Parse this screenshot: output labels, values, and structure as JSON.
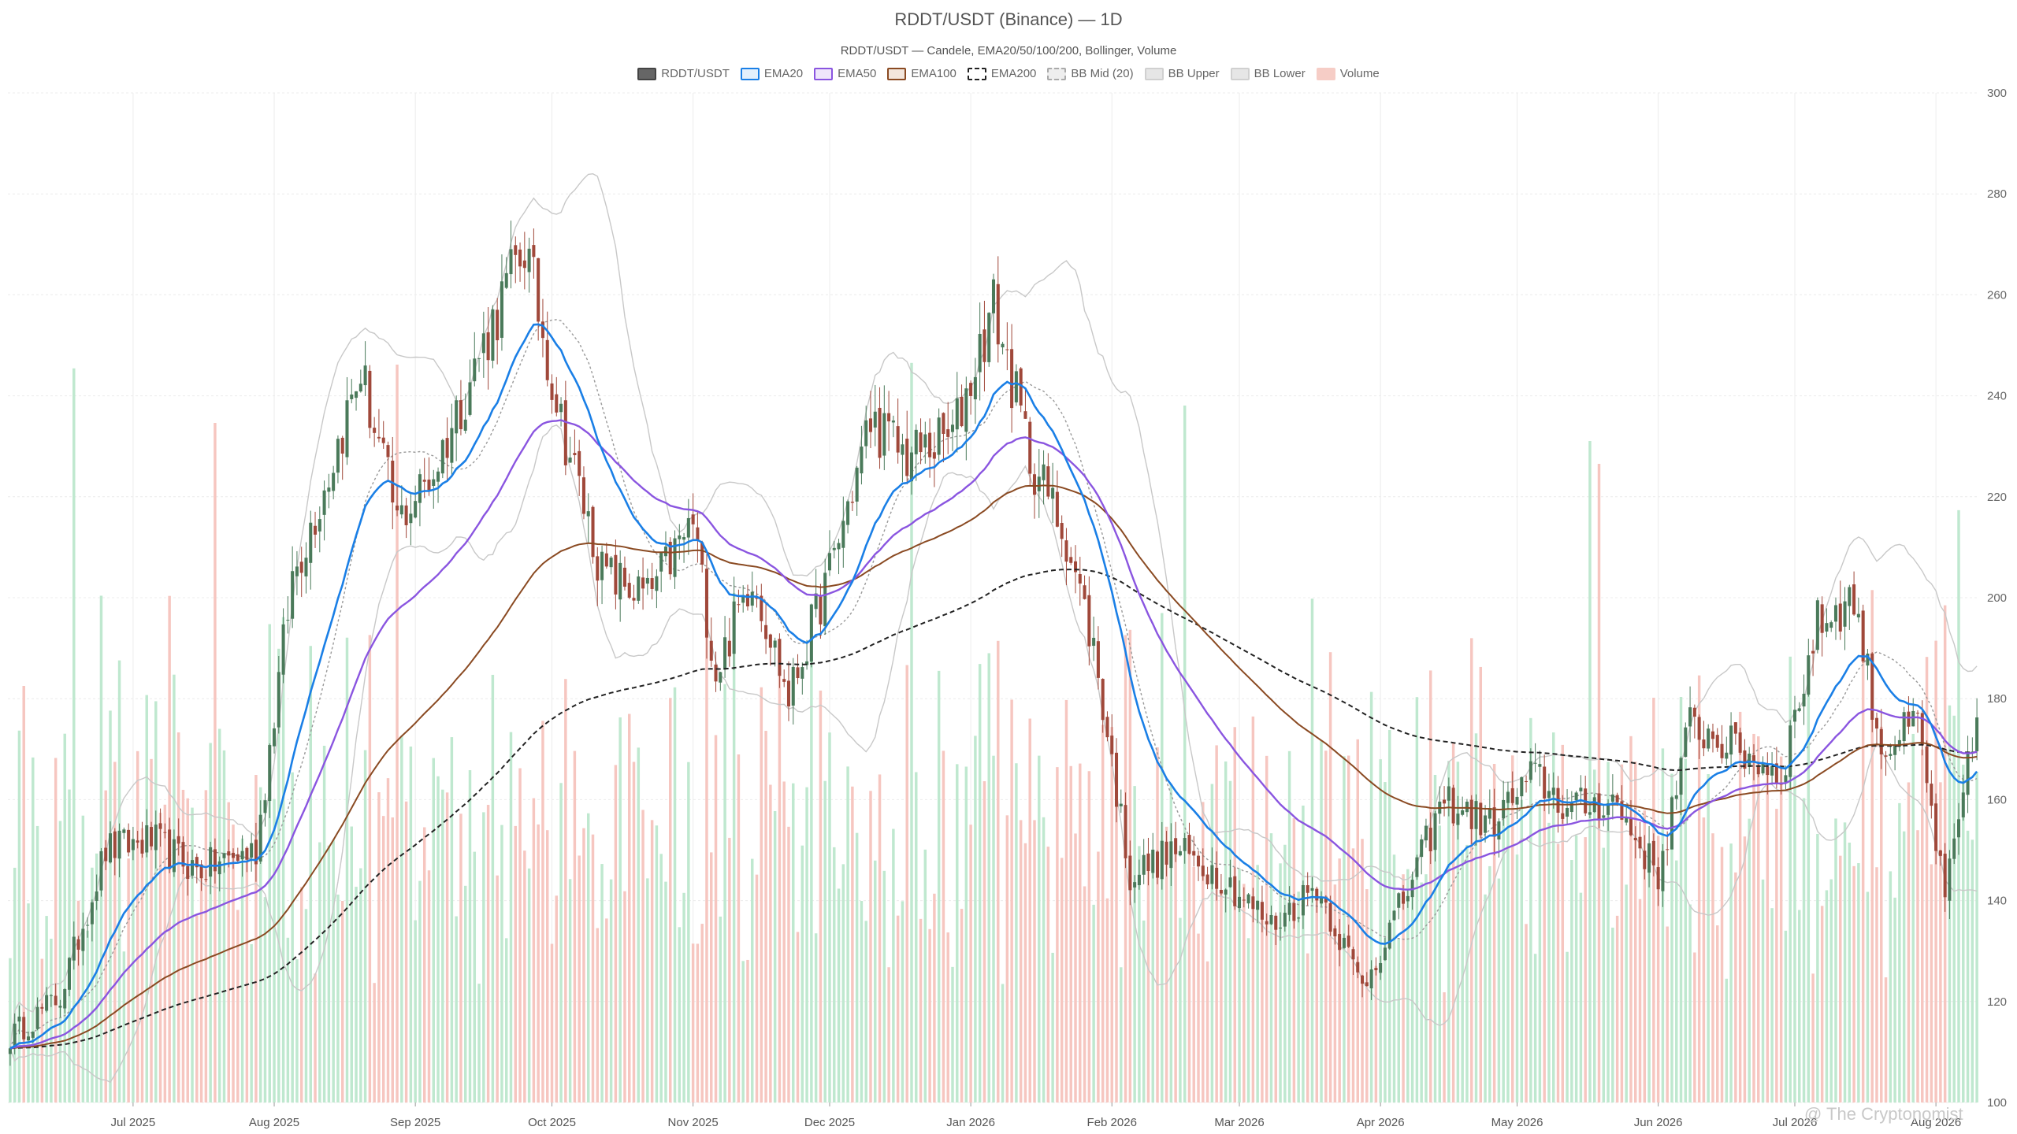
{
  "chart_data": {
    "type": "candlestick",
    "title": "RDDT/USDT (Binance) — 1D",
    "subtitle": "RDDT/USDT — Candele, EMA20/50/100/200, Bollinger, Volume",
    "ylim": [
      100,
      300
    ],
    "y_ticks": [
      "100",
      "120",
      "140",
      "160",
      "180",
      "200",
      "220",
      "240",
      "260",
      "280",
      "300"
    ],
    "grid": true,
    "legend_position": "top-center",
    "x_start": "2025-06-04",
    "x_end": "2026-08-10",
    "x_tick_labels": [
      {
        "date": "2025-07-01",
        "label": "Jul 2025"
      },
      {
        "date": "2025-08-01",
        "label": "Aug 2025"
      },
      {
        "date": "2025-09-01",
        "label": "Sep 2025"
      },
      {
        "date": "2025-10-01",
        "label": "Oct 2025"
      },
      {
        "date": "2025-11-01",
        "label": "Nov 2025"
      },
      {
        "date": "2025-12-01",
        "label": "Dec 2025"
      },
      {
        "date": "2026-01-01",
        "label": "Jan 2026"
      },
      {
        "date": "2026-02-01",
        "label": "Feb 2026"
      },
      {
        "date": "2026-03-01",
        "label": "Mar 2026"
      },
      {
        "date": "2026-04-01",
        "label": "Apr 2026"
      },
      {
        "date": "2026-05-01",
        "label": "May 2026"
      },
      {
        "date": "2026-06-01",
        "label": "Jun 2026"
      },
      {
        "date": "2026-07-01",
        "label": "Jul 2026"
      },
      {
        "date": "2026-08-01",
        "label": "Aug 2026"
      }
    ],
    "legend": [
      {
        "name": "RDDT/USDT",
        "fill": "#666666",
        "border": "#444444",
        "dashed": false
      },
      {
        "name": "EMA20",
        "fill": "#e3f0fc",
        "border": "#1a7fe6",
        "dashed": false
      },
      {
        "name": "EMA50",
        "fill": "#efe6fb",
        "border": "#8a55e0",
        "dashed": false
      },
      {
        "name": "EMA100",
        "fill": "#f3e6dc",
        "border": "#8a4a22",
        "dashed": false
      },
      {
        "name": "EMA200",
        "fill": "#ffffff",
        "border": "#222222",
        "dashed": true
      },
      {
        "name": "BB Mid (20)",
        "fill": "#eeeeee",
        "border": "#aaaaaa",
        "dashed": true
      },
      {
        "name": "BB Upper",
        "fill": "#e6e6e6",
        "border": "#d0d0d0",
        "dashed": false
      },
      {
        "name": "BB Lower",
        "fill": "#e6e6e6",
        "border": "#d0d0d0",
        "dashed": false
      },
      {
        "name": "Volume",
        "fill": "#f6cdc6",
        "border": "#f6cdc6",
        "dashed": false
      }
    ],
    "colors": {
      "up": "#4a7a5a",
      "down": "#a0483a",
      "ema20": "#1a7fe6",
      "ema50": "#8a55e0",
      "ema100": "#8a4a22",
      "ema200": "#222222",
      "bb_mid": "#999999",
      "bb_band": "#c8c8c8",
      "volume_up": "#bfe8cf",
      "volume_down": "#f6c6c0"
    },
    "price_path": [
      {
        "date": "2025-06-04",
        "close": 113
      },
      {
        "date": "2025-06-15",
        "close": 121
      },
      {
        "date": "2025-06-25",
        "close": 150
      },
      {
        "date": "2025-07-05",
        "close": 152
      },
      {
        "date": "2025-07-15",
        "close": 146
      },
      {
        "date": "2025-07-28",
        "close": 150
      },
      {
        "date": "2025-08-05",
        "close": 204
      },
      {
        "date": "2025-08-12",
        "close": 222
      },
      {
        "date": "2025-08-20",
        "close": 245
      },
      {
        "date": "2025-08-28",
        "close": 215
      },
      {
        "date": "2025-09-05",
        "close": 225
      },
      {
        "date": "2025-09-15",
        "close": 248
      },
      {
        "date": "2025-09-25",
        "close": 270
      },
      {
        "date": "2025-10-03",
        "close": 235
      },
      {
        "date": "2025-10-12",
        "close": 205
      },
      {
        "date": "2025-10-22",
        "close": 200
      },
      {
        "date": "2025-11-01",
        "close": 215
      },
      {
        "date": "2025-11-06",
        "close": 185
      },
      {
        "date": "2025-11-14",
        "close": 205
      },
      {
        "date": "2025-11-22",
        "close": 180
      },
      {
        "date": "2025-12-01",
        "close": 205
      },
      {
        "date": "2025-12-10",
        "close": 235
      },
      {
        "date": "2025-12-18",
        "close": 228
      },
      {
        "date": "2025-12-28",
        "close": 232
      },
      {
        "date": "2026-01-06",
        "close": 258
      },
      {
        "date": "2026-01-14",
        "close": 228
      },
      {
        "date": "2026-01-22",
        "close": 212
      },
      {
        "date": "2026-01-28",
        "close": 190
      },
      {
        "date": "2026-02-05",
        "close": 145
      },
      {
        "date": "2026-02-15",
        "close": 150
      },
      {
        "date": "2026-02-25",
        "close": 145
      },
      {
        "date": "2026-03-08",
        "close": 135
      },
      {
        "date": "2026-03-18",
        "close": 143
      },
      {
        "date": "2026-03-28",
        "close": 123
      },
      {
        "date": "2026-04-06",
        "close": 140
      },
      {
        "date": "2026-04-15",
        "close": 160
      },
      {
        "date": "2026-04-25",
        "close": 155
      },
      {
        "date": "2026-05-05",
        "close": 165
      },
      {
        "date": "2026-05-12",
        "close": 158
      },
      {
        "date": "2026-05-22",
        "close": 160
      },
      {
        "date": "2026-06-01",
        "close": 145
      },
      {
        "date": "2026-06-08",
        "close": 175
      },
      {
        "date": "2026-06-18",
        "close": 170
      },
      {
        "date": "2026-06-28",
        "close": 165
      },
      {
        "date": "2026-07-06",
        "close": 195
      },
      {
        "date": "2026-07-14",
        "close": 200
      },
      {
        "date": "2026-07-20",
        "close": 170
      },
      {
        "date": "2026-07-28",
        "close": 175
      },
      {
        "date": "2026-08-03",
        "close": 140
      },
      {
        "date": "2026-08-06",
        "close": 155
      },
      {
        "date": "2026-08-10",
        "close": 176
      }
    ]
  },
  "watermark": "@ The Cryptonomist"
}
